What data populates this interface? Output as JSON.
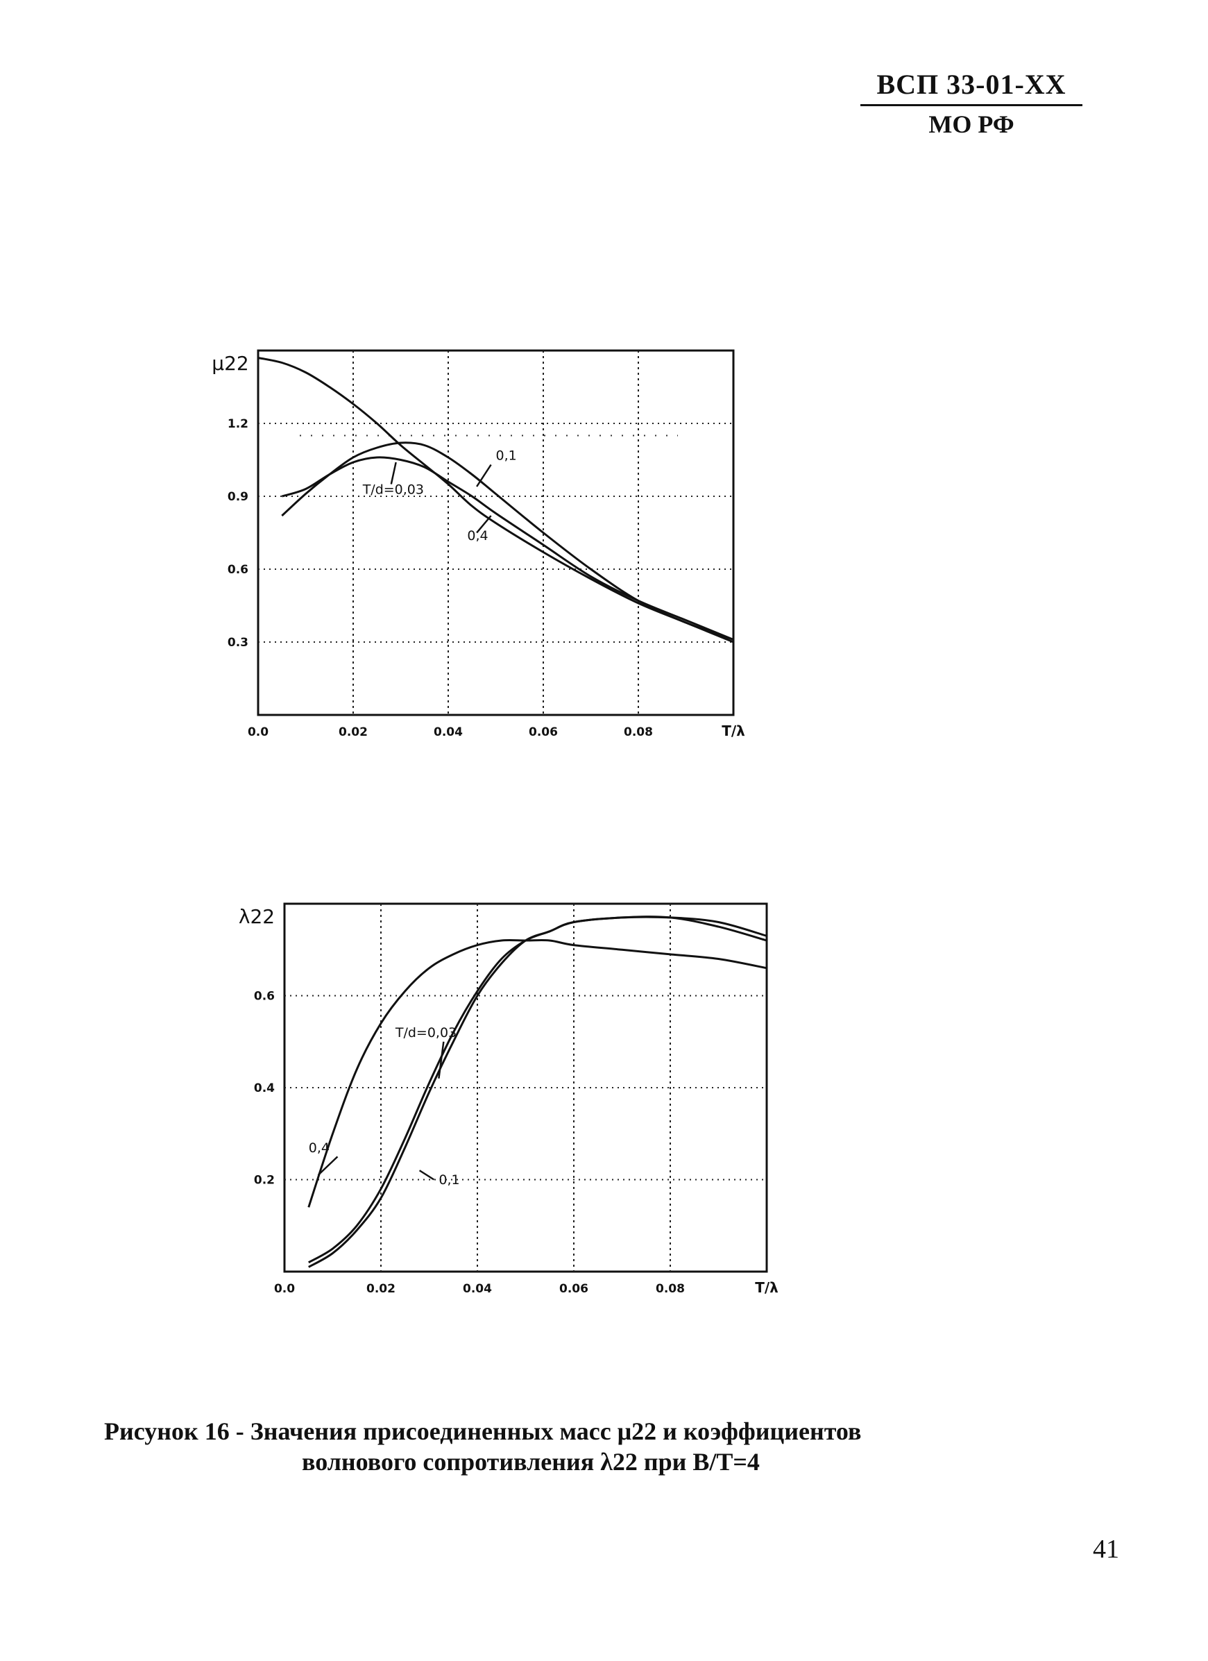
{
  "header": {
    "code": "ВСП 33-01-ХХ",
    "org": "МО РФ"
  },
  "chart_data": [
    {
      "type": "line",
      "ylabel": "μ22",
      "xlabel": "T/λ",
      "xlim": [
        0.0,
        0.1
      ],
      "ylim": [
        0.0,
        1.5
      ],
      "xticks": [
        "0.0",
        "0.02",
        "0.04",
        "0.06",
        "0.08"
      ],
      "yticks": [
        "1.2",
        "0.9",
        "0.6",
        "0.3"
      ],
      "grid": true,
      "series": [
        {
          "name": "T/d=0,03",
          "x": [
            0.005,
            0.01,
            0.015,
            0.02,
            0.025,
            0.03,
            0.035,
            0.04,
            0.045,
            0.05,
            0.06,
            0.07,
            0.08,
            0.09,
            0.1
          ],
          "values": [
            0.9,
            0.93,
            0.99,
            1.04,
            1.06,
            1.05,
            1.02,
            0.96,
            0.9,
            0.83,
            0.7,
            0.57,
            0.47,
            0.39,
            0.31
          ]
        },
        {
          "name": "0,1",
          "x": [
            0.005,
            0.01,
            0.015,
            0.02,
            0.025,
            0.03,
            0.035,
            0.04,
            0.045,
            0.05,
            0.06,
            0.07,
            0.08,
            0.09,
            0.1
          ],
          "values": [
            0.82,
            0.91,
            0.99,
            1.06,
            1.1,
            1.12,
            1.11,
            1.06,
            0.99,
            0.91,
            0.75,
            0.6,
            0.47,
            0.38,
            0.31
          ]
        },
        {
          "name": "0,4",
          "x": [
            0.0,
            0.005,
            0.01,
            0.015,
            0.02,
            0.025,
            0.03,
            0.035,
            0.04,
            0.045,
            0.05,
            0.06,
            0.07,
            0.08,
            0.09,
            0.1
          ],
          "values": [
            1.47,
            1.45,
            1.41,
            1.35,
            1.28,
            1.2,
            1.11,
            1.03,
            0.95,
            0.86,
            0.79,
            0.67,
            0.56,
            0.46,
            0.38,
            0.3
          ]
        }
      ],
      "annotations": [
        "T/d=0,03",
        "0,1",
        "0,4"
      ]
    },
    {
      "type": "line",
      "ylabel": "λ22",
      "xlabel": "T/λ",
      "xlim": [
        0.0,
        0.1
      ],
      "ylim": [
        0.0,
        0.8
      ],
      "xticks": [
        "0.0",
        "0.02",
        "0.04",
        "0.06",
        "0.08"
      ],
      "yticks": [
        "0.6",
        "0.4",
        "0.2"
      ],
      "grid": true,
      "series": [
        {
          "name": "T/d=0,03",
          "x": [
            0.005,
            0.01,
            0.015,
            0.02,
            0.025,
            0.03,
            0.035,
            0.04,
            0.045,
            0.05,
            0.055,
            0.06,
            0.07,
            0.08,
            0.09,
            0.1
          ],
          "values": [
            0.01,
            0.04,
            0.09,
            0.16,
            0.27,
            0.39,
            0.5,
            0.6,
            0.67,
            0.72,
            0.74,
            0.76,
            0.77,
            0.77,
            0.76,
            0.73
          ]
        },
        {
          "name": "0,1",
          "x": [
            0.005,
            0.01,
            0.015,
            0.02,
            0.025,
            0.03,
            0.035,
            0.04,
            0.045,
            0.05,
            0.055,
            0.06,
            0.07,
            0.08,
            0.09,
            0.1
          ],
          "values": [
            0.02,
            0.05,
            0.1,
            0.18,
            0.29,
            0.41,
            0.52,
            0.61,
            0.68,
            0.72,
            0.74,
            0.76,
            0.77,
            0.77,
            0.75,
            0.72
          ]
        },
        {
          "name": "0,4",
          "x": [
            0.005,
            0.01,
            0.015,
            0.02,
            0.025,
            0.03,
            0.035,
            0.04,
            0.045,
            0.05,
            0.055,
            0.06,
            0.07,
            0.08,
            0.09,
            0.1
          ],
          "values": [
            0.14,
            0.3,
            0.44,
            0.54,
            0.61,
            0.66,
            0.69,
            0.71,
            0.72,
            0.72,
            0.72,
            0.71,
            0.7,
            0.69,
            0.68,
            0.66
          ]
        }
      ],
      "annotations": [
        "T/d=0,03",
        "0,1",
        "0,4"
      ]
    }
  ],
  "caption": {
    "line1": "Рисунок 16 - Значения присоединенных масс μ22 и коэффициентов",
    "line2": "волнового сопротивления λ22 при B/T=4"
  },
  "page_number": "41"
}
